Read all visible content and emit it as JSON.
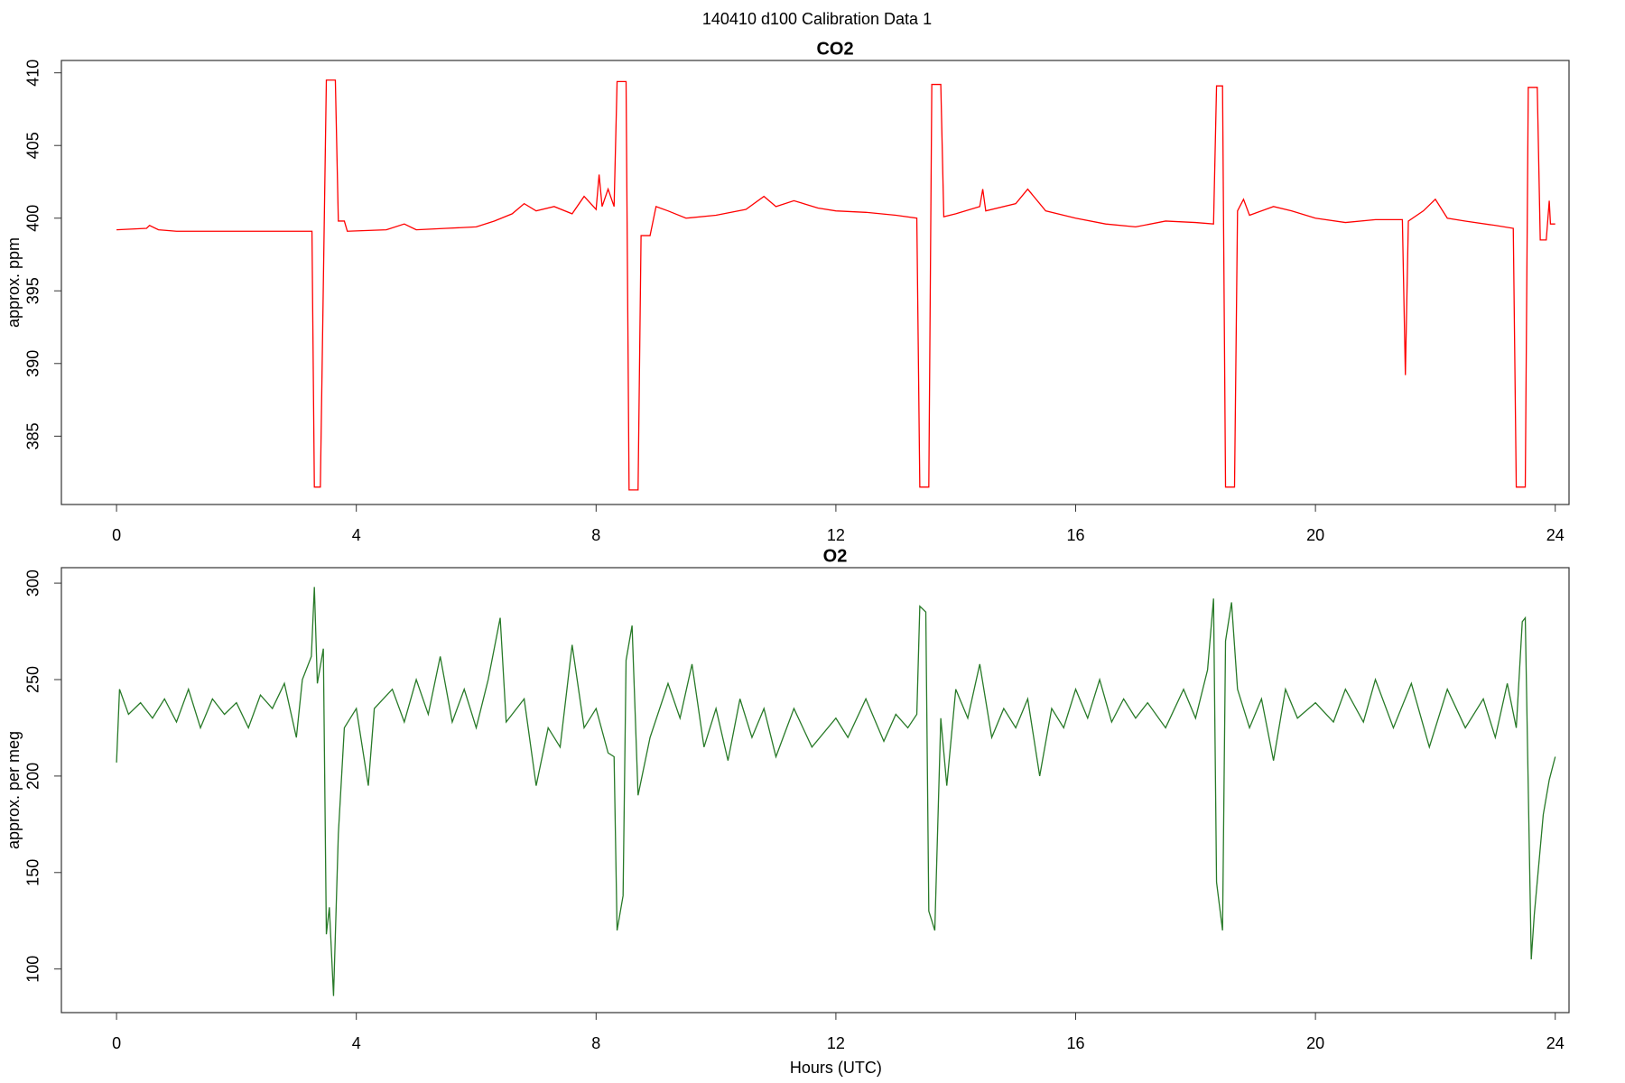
{
  "title": "140410   d100   Calibration Data 1",
  "chart_data": [
    {
      "type": "line",
      "title": "CO2",
      "ylabel": "approx. ppm",
      "x": [
        0,
        0.5,
        0.55,
        0.7,
        1,
        2,
        3,
        3.26,
        3.3,
        3.4,
        3.5,
        3.65,
        3.7,
        3.8,
        3.85,
        4.5,
        4.8,
        5,
        5.5,
        6,
        6.3,
        6.6,
        6.8,
        7,
        7.3,
        7.6,
        7.8,
        8,
        8.05,
        8.1,
        8.2,
        8.3,
        8.35,
        8.5,
        8.55,
        8.7,
        8.75,
        8.9,
        9,
        9.2,
        9.5,
        10,
        10.5,
        10.8,
        11,
        11.3,
        11.7,
        12,
        12.5,
        13,
        13.35,
        13.4,
        13.55,
        13.6,
        13.75,
        13.8,
        14,
        14.4,
        14.45,
        14.5,
        15,
        15.2,
        15.5,
        16,
        16.5,
        17,
        17.5,
        18,
        18.3,
        18.35,
        18.45,
        18.5,
        18.65,
        18.7,
        18.8,
        18.9,
        19.3,
        19.6,
        20,
        20.5,
        21,
        21.45,
        21.5,
        21.55,
        21.8,
        22,
        22.2,
        22.5,
        23,
        23.3,
        23.35,
        23.5,
        23.55,
        23.7,
        23.75,
        23.85,
        23.9,
        23.92,
        24
      ],
      "series": [
        {
          "name": "CO2",
          "color": "#ff0000",
          "values": [
            399.2,
            399.3,
            399.5,
            399.2,
            399.1,
            399.1,
            399.1,
            399.1,
            381.5,
            381.5,
            409.5,
            409.5,
            399.8,
            399.8,
            399.1,
            399.2,
            399.6,
            399.2,
            399.3,
            399.4,
            399.8,
            400.3,
            401.0,
            400.5,
            400.8,
            400.3,
            401.5,
            400.6,
            403,
            400.8,
            402.0,
            400.8,
            409.4,
            409.4,
            381.3,
            381.3,
            398.8,
            398.8,
            400.8,
            400.5,
            400.0,
            400.2,
            400.6,
            401.5,
            400.8,
            401.2,
            400.7,
            400.5,
            400.4,
            400.2,
            400,
            381.5,
            381.5,
            409.2,
            409.2,
            400.1,
            400.3,
            400.8,
            402,
            400.5,
            401,
            402,
            400.5,
            400,
            399.6,
            399.4,
            399.8,
            399.7,
            399.6,
            409.1,
            409.1,
            381.5,
            381.5,
            400.5,
            401.3,
            400.2,
            400.8,
            400.5,
            400,
            399.7,
            399.9,
            399.9,
            389.2,
            399.8,
            400.5,
            401.3,
            400,
            399.8,
            399.5,
            399.3,
            381.5,
            381.5,
            409,
            409,
            398.5,
            398.5,
            401.2,
            399.6,
            399.6
          ]
        }
      ],
      "xlim": [
        -0.92,
        24.23
      ],
      "xticks": [
        0,
        4,
        8,
        12,
        16,
        20,
        24
      ],
      "ylim": [
        380.3,
        410.85
      ],
      "yticks": [
        385,
        390,
        395,
        400,
        405,
        410
      ]
    },
    {
      "type": "line",
      "title": "O2",
      "ylabel": "approx. per meg",
      "xlabel": "Hours (UTC)",
      "x": [
        0,
        0.05,
        0.2,
        0.4,
        0.6,
        0.8,
        1,
        1.2,
        1.4,
        1.6,
        1.8,
        2,
        2.2,
        2.4,
        2.6,
        2.8,
        3,
        3.1,
        3.25,
        3.3,
        3.35,
        3.45,
        3.5,
        3.55,
        3.62,
        3.7,
        3.8,
        4,
        4.2,
        4.3,
        4.6,
        4.8,
        5,
        5.2,
        5.4,
        5.6,
        5.8,
        6,
        6.2,
        6.4,
        6.5,
        6.8,
        7,
        7.2,
        7.4,
        7.6,
        7.8,
        8,
        8.2,
        8.3,
        8.35,
        8.45,
        8.5,
        8.6,
        8.7,
        8.9,
        9.2,
        9.4,
        9.6,
        9.8,
        10,
        10.2,
        10.4,
        10.6,
        10.8,
        11,
        11.3,
        11.6,
        12,
        12.2,
        12.5,
        12.8,
        13,
        13.2,
        13.35,
        13.4,
        13.5,
        13.55,
        13.65,
        13.75,
        13.85,
        14,
        14.2,
        14.4,
        14.6,
        14.8,
        15,
        15.2,
        15.4,
        15.6,
        15.8,
        16,
        16.2,
        16.4,
        16.6,
        16.8,
        17,
        17.2,
        17.5,
        17.8,
        18,
        18.2,
        18.3,
        18.35,
        18.45,
        18.5,
        18.6,
        18.7,
        18.9,
        19.1,
        19.3,
        19.5,
        19.7,
        20,
        20.3,
        20.5,
        20.8,
        21,
        21.3,
        21.6,
        21.9,
        22.2,
        22.5,
        22.8,
        23,
        23.2,
        23.35,
        23.45,
        23.5,
        23.6,
        23.65,
        23.8,
        23.9,
        24
      ],
      "series": [
        {
          "name": "O2",
          "color": "#287a28",
          "values": [
            207,
            245,
            232,
            238,
            230,
            240,
            228,
            245,
            225,
            240,
            232,
            238,
            225,
            242,
            235,
            248,
            220,
            250,
            262,
            298,
            248,
            266,
            118,
            132,
            86,
            170,
            225,
            235,
            195,
            235,
            245,
            228,
            250,
            232,
            262,
            228,
            245,
            225,
            250,
            282,
            228,
            240,
            195,
            225,
            215,
            268,
            225,
            235,
            212,
            210,
            120,
            138,
            260,
            278,
            190,
            220,
            248,
            230,
            258,
            215,
            235,
            208,
            240,
            220,
            235,
            210,
            235,
            215,
            230,
            220,
            240,
            218,
            232,
            225,
            232,
            288,
            285,
            130,
            120,
            230,
            195,
            245,
            230,
            258,
            220,
            235,
            225,
            240,
            200,
            235,
            225,
            245,
            230,
            250,
            228,
            240,
            230,
            238,
            225,
            245,
            230,
            255,
            292,
            145,
            120,
            270,
            290,
            245,
            225,
            240,
            208,
            245,
            230,
            238,
            228,
            245,
            228,
            250,
            225,
            248,
            215,
            245,
            225,
            240,
            220,
            248,
            225,
            280,
            282,
            105,
            128,
            180,
            198,
            210
          ]
        }
      ],
      "xlim": [
        -0.92,
        24.23
      ],
      "xticks": [
        0,
        4,
        8,
        12,
        16,
        20,
        24
      ],
      "ylim": [
        77.4,
        308
      ],
      "yticks": [
        100,
        150,
        200,
        250,
        300
      ]
    }
  ]
}
